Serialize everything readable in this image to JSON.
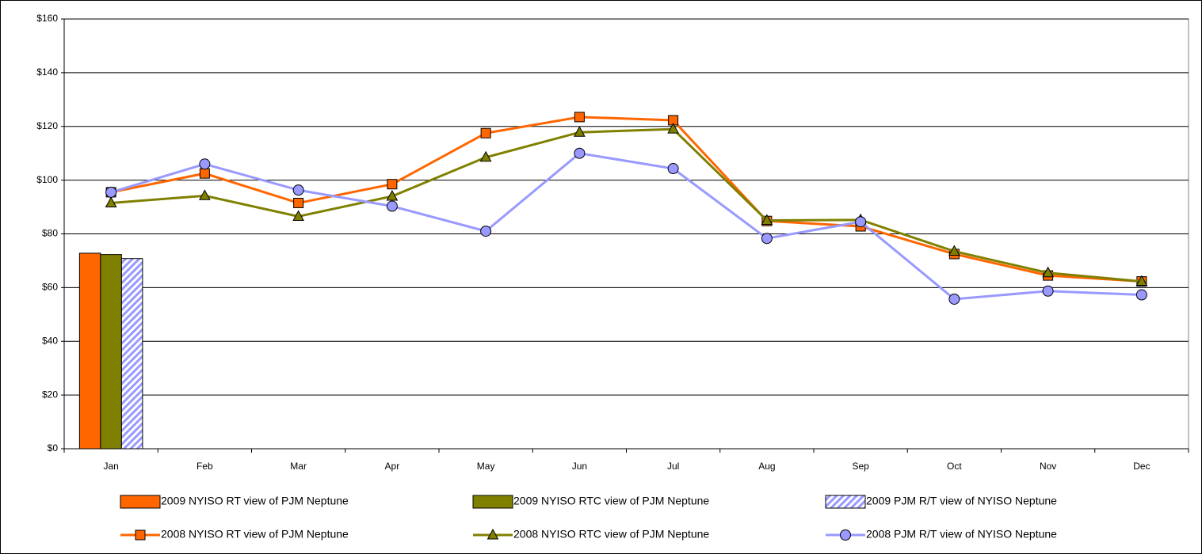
{
  "chart_data": {
    "type": "combo",
    "categories": [
      "Jan",
      "Feb",
      "Mar",
      "Apr",
      "May",
      "Jun",
      "Jul",
      "Aug",
      "Sep",
      "Oct",
      "Nov",
      "Dec"
    ],
    "series": [
      {
        "name": "2009 NYISO RT view of PJM Neptune",
        "kind": "bar",
        "color": "#ff6600",
        "values": [
          72.8,
          null,
          null,
          null,
          null,
          null,
          null,
          null,
          null,
          null,
          null,
          null
        ]
      },
      {
        "name": "2009 NYISO RTC view of PJM Neptune",
        "kind": "bar",
        "color": "#808000",
        "values": [
          72.3,
          null,
          null,
          null,
          null,
          null,
          null,
          null,
          null,
          null,
          null,
          null
        ]
      },
      {
        "name": "2009 PJM R/T view of NYISO Neptune",
        "kind": "bar",
        "color": "#9999ff",
        "hatch": true,
        "values": [
          70.8,
          null,
          null,
          null,
          null,
          null,
          null,
          null,
          null,
          null,
          null,
          null
        ]
      },
      {
        "name": "2008 NYISO RT view of PJM Neptune",
        "kind": "line",
        "marker": "square",
        "color": "#ff6600",
        "values": [
          95.5,
          102.5,
          91.5,
          98.5,
          117.5,
          123.5,
          122.3,
          84.8,
          82.8,
          72.5,
          64.5,
          62.3
        ]
      },
      {
        "name": "2008 NYISO RTC view of PJM Neptune",
        "kind": "line",
        "marker": "triangle",
        "color": "#808000",
        "values": [
          91.5,
          94.2,
          86.5,
          94,
          108.5,
          117.8,
          119,
          85,
          85.2,
          73.5,
          65.5,
          62.3
        ]
      },
      {
        "name": "2008 PJM R/T view of NYISO Neptune",
        "kind": "line",
        "marker": "circle",
        "color": "#9999ff",
        "values": [
          95.5,
          106,
          96.3,
          90.3,
          81,
          110,
          104.3,
          78.3,
          84.5,
          55.7,
          58.7,
          57.3
        ]
      }
    ],
    "ylim": [
      0,
      160
    ],
    "yticks": [
      {
        "value": 0,
        "label": "$0"
      },
      {
        "value": 20,
        "label": "$20"
      },
      {
        "value": 40,
        "label": "$40"
      },
      {
        "value": 60,
        "label": "$60"
      },
      {
        "value": 80,
        "label": "$80"
      },
      {
        "value": 100,
        "label": "$100"
      },
      {
        "value": 120,
        "label": "$120"
      },
      {
        "value": 140,
        "label": "$140"
      },
      {
        "value": 160,
        "label": "$160"
      }
    ],
    "grid": true,
    "legend": "bottom"
  }
}
